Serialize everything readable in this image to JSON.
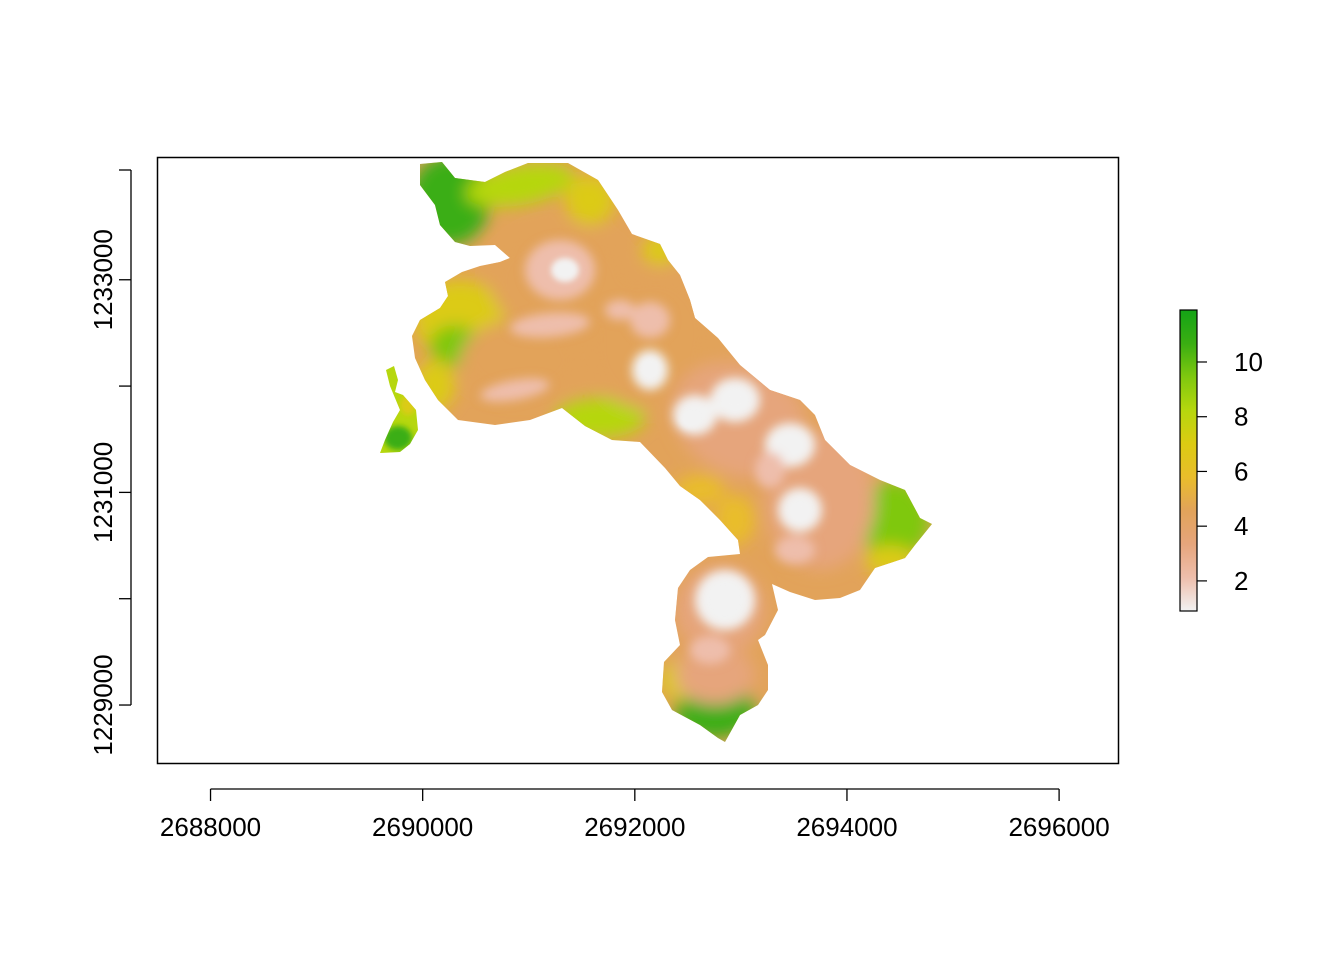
{
  "chart_data": {
    "type": "heatmap",
    "title": "",
    "xlabel": "",
    "ylabel": "",
    "x_ticks": [
      2688000,
      2690000,
      2692000,
      2694000,
      2696000
    ],
    "x_tick_labels": [
      "2688000",
      "2690000",
      "2692000",
      "2694000",
      "2696000"
    ],
    "y_ticks": [
      1229000,
      1230000,
      1231000,
      1232000,
      1233000
    ],
    "y_tick_labels": [
      "1229000",
      "",
      "1231000",
      "",
      "1233000"
    ],
    "xlim": [
      2687500,
      2696560
    ],
    "ylim": [
      1228450,
      1234150
    ],
    "legend": {
      "position": "right",
      "range": [
        0.9,
        11.9
      ],
      "ticks": [
        2,
        4,
        6,
        8,
        10
      ],
      "tick_labels": [
        "2",
        "4",
        "6",
        "8",
        "10"
      ],
      "colors": [
        "#f2f2f2",
        "#eebeac",
        "#e6a57c",
        "#e2a35a",
        "#e9bd2b",
        "#dccb12",
        "#b6d70e",
        "#7fc80f",
        "#3aae12",
        "#14a416"
      ]
    },
    "raster_extent": {
      "x": [
        2689640,
        2694800
      ],
      "y": [
        1228550,
        1234100
      ]
    },
    "raster_value_notes": "Raster of values ~1 (pale, ridge crests) to ~12 (green, valley edges) over an irregular elongated region running NW to SE with two circular lobes in the south."
  }
}
